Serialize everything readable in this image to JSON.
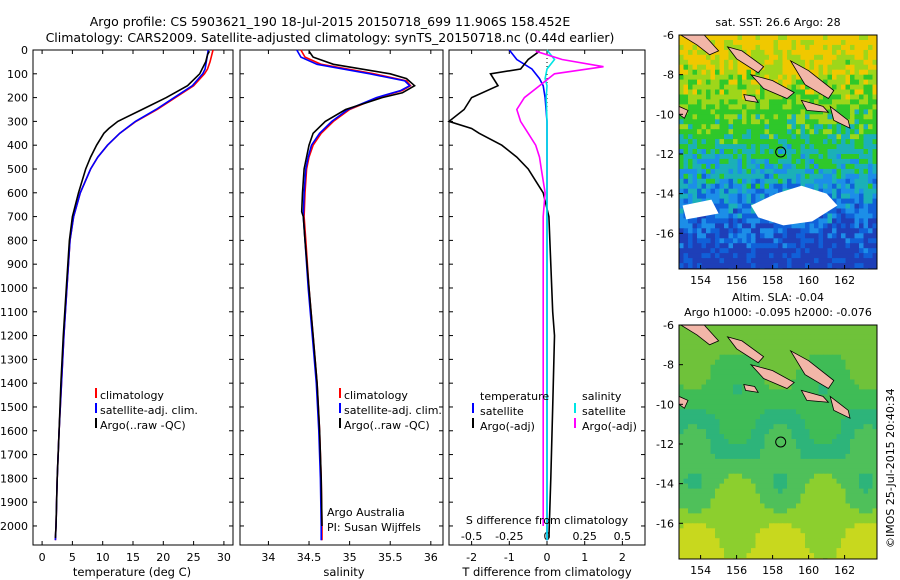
{
  "title": {
    "line1": "Argo profile: CS 5903621_190 18-Jul-2015 20150718_699 11.906S 158.452E",
    "line2": "Climatology: CARS2009. Satellite-adjusted climatology: synTS_20150718.nc (0.44d earlier)"
  },
  "depth_axis": {
    "ticks": [
      0,
      100,
      200,
      300,
      400,
      500,
      600,
      700,
      800,
      900,
      1000,
      1100,
      1200,
      1300,
      1400,
      1500,
      1600,
      1700,
      1800,
      1900,
      2000
    ],
    "range": [
      0,
      2080
    ]
  },
  "chart_data": [
    {
      "type": "line",
      "id": "temperature",
      "xlabel": "temperature (deg C)",
      "xlim": [
        -1.5,
        31.5
      ],
      "xticks": [
        0,
        5,
        10,
        15,
        20,
        25,
        30
      ],
      "ylim": [
        0,
        2080
      ],
      "legend": [
        "climatology",
        "satellite-adj. clim.",
        "Argo(..raw -QC)"
      ],
      "series": [
        {
          "name": "climatology",
          "color": "#ff0000",
          "depth": [
            0,
            20,
            50,
            80,
            100,
            150,
            200,
            250,
            300,
            350,
            400,
            450,
            500,
            600,
            700,
            800,
            1000,
            1200,
            1400,
            1600,
            1800,
            2000,
            2060
          ],
          "values": [
            28.2,
            28.0,
            27.7,
            27.3,
            26.8,
            25.0,
            22.0,
            19.0,
            15.5,
            12.8,
            10.8,
            9.2,
            8.0,
            6.3,
            5.2,
            4.6,
            4.1,
            3.6,
            3.2,
            2.8,
            2.5,
            2.3,
            2.2
          ]
        },
        {
          "name": "satellite-adj. clim.",
          "color": "#0000ff",
          "depth": [
            0,
            20,
            50,
            80,
            100,
            150,
            200,
            250,
            300,
            350,
            400,
            450,
            500,
            600,
            700,
            800,
            1000,
            1200,
            1400,
            1600,
            1800,
            2000,
            2060
          ],
          "values": [
            27.4,
            27.3,
            27.1,
            26.9,
            26.5,
            24.8,
            21.8,
            18.8,
            15.4,
            12.8,
            10.8,
            9.2,
            8.0,
            6.3,
            5.2,
            4.6,
            4.1,
            3.6,
            3.2,
            2.8,
            2.5,
            2.3,
            2.2
          ]
        },
        {
          "name": "Argo",
          "color": "#000000",
          "depth": [
            5,
            20,
            50,
            80,
            100,
            150,
            200,
            250,
            300,
            330,
            350,
            400,
            450,
            500,
            600,
            700,
            800,
            1000,
            1200,
            1400,
            1600,
            1800,
            2000,
            2050
          ],
          "values": [
            27.6,
            27.3,
            27.0,
            26.4,
            26.0,
            24.0,
            20.5,
            16.5,
            12.5,
            11.0,
            10.2,
            9.0,
            8.0,
            7.2,
            6.0,
            5.0,
            4.5,
            4.0,
            3.5,
            3.1,
            2.8,
            2.5,
            2.3,
            2.2
          ]
        }
      ]
    },
    {
      "type": "line",
      "id": "salinity",
      "xlabel": "salinity",
      "xlim": [
        33.65,
        36.15
      ],
      "xticks": [
        34,
        34.5,
        35,
        35.5,
        36
      ],
      "ylim": [
        0,
        2080
      ],
      "legend": [
        "climatology",
        "satellite-adj. clim.",
        "Argo(..raw -QC)"
      ],
      "series": [
        {
          "name": "climatology",
          "color": "#ff0000",
          "depth": [
            0,
            30,
            60,
            100,
            130,
            150,
            170,
            200,
            250,
            300,
            350,
            400,
            450,
            500,
            600,
            700,
            800,
            1000,
            1200,
            1400,
            1600,
            1800,
            2000,
            2060
          ],
          "values": [
            34.4,
            34.45,
            34.65,
            35.3,
            35.7,
            35.75,
            35.65,
            35.35,
            35.0,
            34.8,
            34.65,
            34.55,
            34.5,
            34.47,
            34.45,
            34.44,
            34.46,
            34.5,
            34.55,
            34.6,
            34.63,
            34.65,
            34.66,
            34.66
          ]
        },
        {
          "name": "satellite-adj. clim.",
          "color": "#0000ff",
          "depth": [
            0,
            30,
            60,
            100,
            130,
            150,
            170,
            200,
            250,
            300,
            350,
            400,
            450,
            500,
            600,
            700,
            800,
            1000,
            1200,
            1400,
            1600,
            1800,
            2000,
            2060
          ],
          "values": [
            34.35,
            34.4,
            34.6,
            35.25,
            35.68,
            35.74,
            35.63,
            35.33,
            34.98,
            34.78,
            34.63,
            34.53,
            34.49,
            34.46,
            34.44,
            34.43,
            34.45,
            34.49,
            34.54,
            34.59,
            34.62,
            34.64,
            34.65,
            34.65
          ]
        },
        {
          "name": "Argo",
          "color": "#000000",
          "depth": [
            5,
            30,
            60,
            100,
            120,
            150,
            180,
            200,
            250,
            300,
            350,
            400,
            500,
            600,
            680,
            700,
            800,
            1000,
            1200,
            1400,
            1600,
            1800,
            2000
          ],
          "values": [
            34.5,
            34.55,
            34.8,
            35.5,
            35.7,
            35.8,
            35.65,
            35.4,
            34.95,
            34.7,
            34.55,
            34.5,
            34.44,
            34.42,
            34.41,
            34.43,
            34.45,
            34.5,
            34.55,
            34.6,
            34.63,
            34.65,
            34.66
          ]
        }
      ]
    },
    {
      "type": "line",
      "id": "difference",
      "xlabel": "T difference from climatology",
      "xlabel_top": "S difference from climatology",
      "xlim": [
        -2.6,
        2.6
      ],
      "xticks": [
        -2,
        -1,
        0,
        1,
        2
      ],
      "xticks_top": [
        "-0.5",
        "-0.25",
        "0",
        "0.25",
        "0.5"
      ],
      "ylim": [
        0,
        2080
      ],
      "legend_left_title": "temperature",
      "legend_right_title": "salinity",
      "legend_left": [
        "satellite",
        "Argo(-adj)"
      ],
      "legend_right": [
        "satellite",
        "Argo(-adj)"
      ],
      "series": [
        {
          "name": "T satellite",
          "color": "#0000ff",
          "depth": [
            0,
            40,
            80,
            120,
            150,
            200,
            300,
            400,
            500,
            600,
            2060
          ],
          "values": [
            -1.0,
            -0.8,
            -0.4,
            -0.2,
            -0.1,
            -0.05,
            0,
            0,
            0,
            0,
            0
          ]
        },
        {
          "name": "T Argo(-adj)",
          "color": "#000000",
          "depth": [
            5,
            40,
            80,
            100,
            150,
            200,
            250,
            300,
            330,
            350,
            400,
            450,
            500,
            550,
            600,
            700,
            900,
            1100,
            1200,
            1500,
            1800,
            2050
          ],
          "values": [
            -0.2,
            -0.5,
            -0.7,
            -1.5,
            -1.3,
            -2.0,
            -2.2,
            -2.6,
            -2.0,
            -1.8,
            -1.2,
            -0.8,
            -0.5,
            -0.3,
            -0.1,
            0.05,
            0.1,
            0.15,
            0.2,
            0.15,
            0.1,
            0.05
          ]
        },
        {
          "name": "S satellite",
          "color": "#00e5e5",
          "depth": [
            0,
            40,
            80,
            120,
            150,
            200,
            300,
            400,
            500,
            600,
            800,
            2060
          ],
          "values": [
            0,
            0.2,
            0,
            -0.05,
            0,
            -0.02,
            0,
            0,
            0,
            0,
            0,
            0
          ]
        },
        {
          "name": "S Argo(-adj)",
          "color": "#ff00ff",
          "depth": [
            5,
            40,
            70,
            100,
            150,
            200,
            250,
            300,
            350,
            400,
            450,
            500,
            550,
            600,
            700,
            900,
            1100,
            1200,
            1600,
            2000
          ],
          "values": [
            -0.3,
            0.4,
            1.5,
            0.2,
            -0.2,
            -0.6,
            -0.8,
            -0.7,
            -0.5,
            -0.3,
            -0.2,
            -0.15,
            -0.1,
            -0.05,
            -0.1,
            -0.1,
            -0.1,
            -0.1,
            -0.1,
            -0.1
          ]
        }
      ]
    }
  ],
  "annotations": {
    "argo_australia": "Argo Australia",
    "pi": "PI: Susan Wijffels",
    "watermark": "©IMOS 25-Jul-2015 20:40:34"
  },
  "maps": [
    {
      "title": "sat. SST: 26.6  Argo: 28",
      "xticks": [
        154,
        156,
        158,
        160,
        162
      ],
      "yticks": [
        -6,
        -8,
        -10,
        -12,
        -14,
        -16
      ],
      "xlim": [
        152.8,
        163.8
      ],
      "ylim": [
        -17.8,
        -6
      ],
      "marker": {
        "lon": 158.45,
        "lat": -11.9
      }
    },
    {
      "title": "Altim. SLA: -0.04",
      "subtitle": "Argo h1000: -0.095  h2000: -0.076",
      "xticks": [
        154,
        156,
        158,
        160,
        162
      ],
      "yticks": [
        -6,
        -8,
        -10,
        -12,
        -14,
        -16
      ],
      "xlim": [
        152.8,
        163.8
      ],
      "ylim": [
        -17.8,
        -6
      ],
      "marker": {
        "lon": 158.45,
        "lat": -11.9
      }
    }
  ],
  "colors": {
    "land": "#f2b6a8",
    "gap": "#ffffff"
  }
}
